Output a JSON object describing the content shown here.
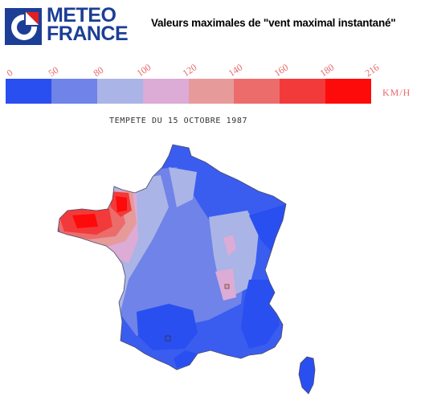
{
  "logo": {
    "line1": "METEO",
    "line2": "FRANCE",
    "brand_color": "#1c3e96"
  },
  "title": "Valeurs maximales de \"vent maximal instantané\"",
  "legend": {
    "unit": "KM/H",
    "ticks": [
      "0",
      "50",
      "80",
      "100",
      "120",
      "140",
      "160",
      "180",
      "216"
    ],
    "classes": [
      {
        "from": 0,
        "to": 50,
        "color": "#2a4ff0"
      },
      {
        "from": 50,
        "to": 80,
        "color": "#6f83e8"
      },
      {
        "from": 80,
        "to": 100,
        "color": "#aab4e6"
      },
      {
        "from": 100,
        "to": 120,
        "color": "#dcabd6"
      },
      {
        "from": 120,
        "to": 140,
        "color": "#e79a9a"
      },
      {
        "from": 140,
        "to": 160,
        "color": "#ec6c6c"
      },
      {
        "from": 160,
        "to": 180,
        "color": "#f23a3a"
      },
      {
        "from": 180,
        "to": 216,
        "color": "#fd0a0a"
      }
    ]
  },
  "map": {
    "subtitle": "TEMPETE DU 15 OCTOBRE 1987",
    "region": "France"
  }
}
